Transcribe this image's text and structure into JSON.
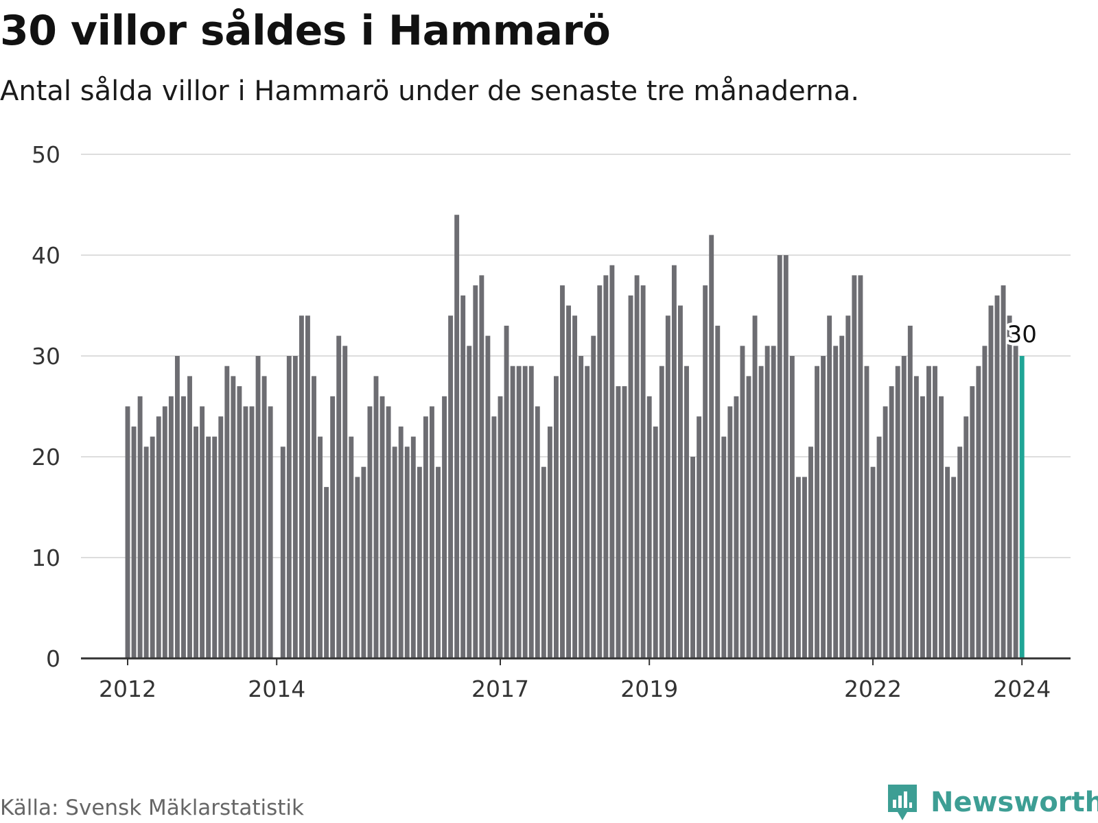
{
  "title": "30 villor såldes i Hammarö",
  "subtitle": "Antal sålda villor i Hammarö under de senaste tre månaderna.",
  "source": "Källa: Svensk Mäklarstatistik",
  "brand": "Newsworthy",
  "colors": {
    "bar": "#6d6d72",
    "highlight": "#1fa596",
    "grid": "#dddddd",
    "axis": "#333333",
    "brand": "#3d9e94"
  },
  "icons": {
    "brand_logo": "newsworthy-chart-bubble-icon"
  },
  "chart_data": {
    "type": "bar",
    "title": "30 villor såldes i Hammarö",
    "subtitle": "Antal sålda villor i Hammarö under de senaste tre månaderna.",
    "xlabel": "",
    "ylabel": "",
    "x_start": "2012-01",
    "x_end": "2024-01",
    "values": [
      25,
      23,
      26,
      21,
      22,
      24,
      25,
      26,
      30,
      26,
      28,
      23,
      25,
      22,
      22,
      24,
      29,
      28,
      27,
      25,
      25,
      30,
      28,
      25,
      null,
      21,
      30,
      30,
      34,
      34,
      28,
      22,
      17,
      26,
      32,
      31,
      22,
      18,
      19,
      25,
      28,
      26,
      25,
      21,
      23,
      21,
      22,
      19,
      24,
      25,
      19,
      26,
      34,
      44,
      36,
      31,
      37,
      38,
      32,
      24,
      26,
      33,
      29,
      29,
      29,
      29,
      25,
      19,
      23,
      28,
      37,
      35,
      34,
      30,
      29,
      32,
      37,
      38,
      39,
      27,
      27,
      36,
      38,
      37,
      26,
      23,
      29,
      34,
      39,
      35,
      29,
      20,
      24,
      37,
      42,
      33,
      22,
      25,
      26,
      31,
      28,
      34,
      29,
      31,
      31,
      40,
      40,
      30,
      18,
      18,
      21,
      29,
      30,
      34,
      31,
      32,
      34,
      38,
      38,
      29,
      19,
      22,
      25,
      27,
      29,
      30,
      33,
      28,
      26,
      29,
      29,
      26,
      19,
      18,
      21,
      24,
      27,
      29,
      31,
      35,
      36,
      37,
      34,
      31,
      30
    ],
    "highlight_index": 144,
    "highlight_label": "30",
    "x_ticks": [
      {
        "label": "2012",
        "index": 0
      },
      {
        "label": "2014",
        "index": 24
      },
      {
        "label": "2017",
        "index": 60
      },
      {
        "label": "2019",
        "index": 84
      },
      {
        "label": "2022",
        "index": 120
      },
      {
        "label": "2024",
        "index": 144
      }
    ],
    "y_ticks": [
      0,
      10,
      20,
      30,
      40,
      50
    ],
    "ylim": [
      0,
      50
    ],
    "grid": true,
    "legend": "none"
  }
}
